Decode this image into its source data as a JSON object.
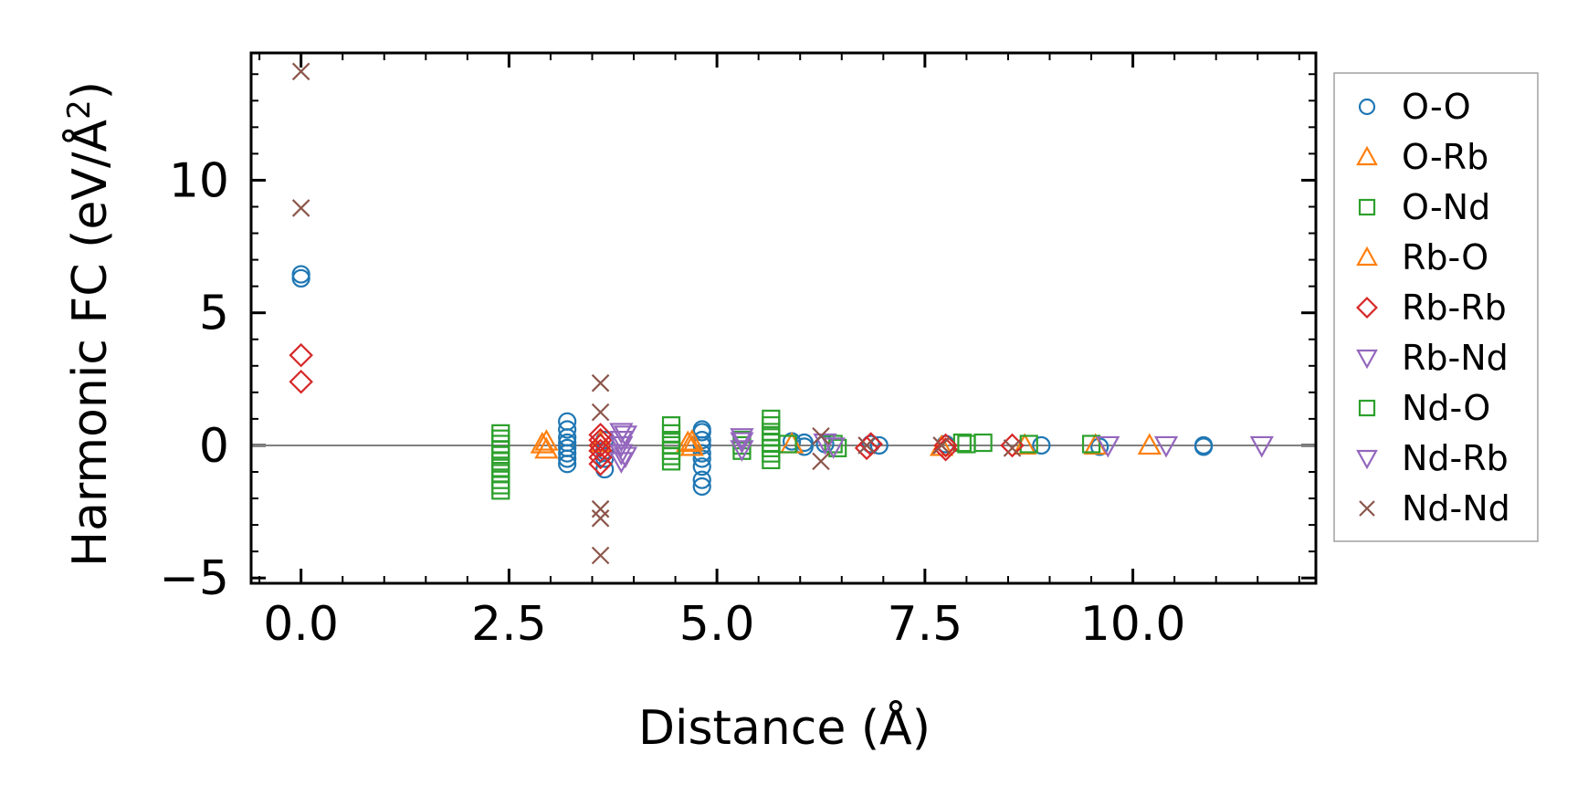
{
  "chart_data": {
    "type": "scatter",
    "title": "",
    "xlabel": "Distance (Å)",
    "ylabel_main": "Harmonic FC (eV/Å",
    "ylabel_sup": "2",
    "ylabel_close": ")",
    "xlim": [
      -0.6,
      12.2
    ],
    "ylim": [
      -5.2,
      14.8
    ],
    "xticks": [
      0.0,
      2.5,
      5.0,
      7.5,
      10.0
    ],
    "xtick_labels": [
      "0.0",
      "2.5",
      "5.0",
      "7.5",
      "10.0"
    ],
    "yticks": [
      -5,
      0,
      5,
      10
    ],
    "ytick_labels": [
      "−5",
      "0",
      "5",
      "10"
    ],
    "zero_line": true,
    "grid": false,
    "legend_position": "outside-right",
    "series": [
      {
        "name": "O-O",
        "marker": "circle",
        "color": "#1f77b4",
        "points": [
          [
            0,
            6.3
          ],
          [
            0,
            6.45
          ],
          [
            3.2,
            0.9
          ],
          [
            3.2,
            0.6
          ],
          [
            3.2,
            0.3
          ],
          [
            3.2,
            0.1
          ],
          [
            3.2,
            -0.1
          ],
          [
            3.2,
            -0.3
          ],
          [
            3.2,
            -0.5
          ],
          [
            3.2,
            -0.7
          ],
          [
            3.65,
            0.2
          ],
          [
            3.65,
            -0.2
          ],
          [
            3.65,
            -0.5
          ],
          [
            3.65,
            -0.9
          ],
          [
            4.82,
            0.6
          ],
          [
            4.82,
            0.5
          ],
          [
            4.82,
            0.2
          ],
          [
            4.82,
            0.0
          ],
          [
            4.82,
            -0.3
          ],
          [
            4.82,
            -0.5
          ],
          [
            4.82,
            -0.8
          ],
          [
            4.82,
            -1.3
          ],
          [
            4.82,
            -1.55
          ],
          [
            5.9,
            0.15
          ],
          [
            6.05,
            0.1
          ],
          [
            6.05,
            -0.05
          ],
          [
            6.3,
            0.05
          ],
          [
            6.85,
            0.05
          ],
          [
            6.95,
            0.0
          ],
          [
            7.75,
            0.05
          ],
          [
            8.9,
            0.0
          ],
          [
            9.6,
            -0.05
          ],
          [
            10.85,
            -0.05
          ],
          [
            10.85,
            0.0
          ]
        ]
      },
      {
        "name": "O-Rb",
        "marker": "triangle-up",
        "color": "#ff7f0e",
        "points": [
          [
            2.95,
            0.15
          ],
          [
            2.95,
            -0.15
          ],
          [
            3.6,
            0.1
          ],
          [
            4.65,
            0.1
          ],
          [
            4.7,
            -0.05
          ],
          [
            5.9,
            0.05
          ],
          [
            7.7,
            -0.05
          ],
          [
            8.7,
            0.0
          ],
          [
            9.55,
            0.0
          ],
          [
            10.2,
            0.0
          ]
        ]
      },
      {
        "name": "O-Nd",
        "marker": "square",
        "color": "#2ca02c",
        "points": [
          [
            2.4,
            0.45
          ],
          [
            2.4,
            0.25
          ],
          [
            2.4,
            0.05
          ],
          [
            2.4,
            -0.15
          ],
          [
            2.4,
            -0.35
          ],
          [
            2.4,
            -0.6
          ],
          [
            2.4,
            -0.85
          ],
          [
            2.4,
            -1.05
          ],
          [
            2.4,
            -1.3
          ],
          [
            2.4,
            -1.5
          ],
          [
            2.4,
            -1.7
          ],
          [
            4.45,
            0.75
          ],
          [
            4.45,
            0.45
          ],
          [
            4.45,
            0.2
          ],
          [
            4.45,
            0.0
          ],
          [
            4.45,
            -0.2
          ],
          [
            4.45,
            -0.4
          ],
          [
            4.45,
            -0.6
          ],
          [
            5.3,
            0.2
          ],
          [
            5.3,
            0.0
          ],
          [
            5.3,
            -0.2
          ],
          [
            5.65,
            1.0
          ],
          [
            5.65,
            0.75
          ],
          [
            5.65,
            0.5
          ],
          [
            5.65,
            0.3
          ],
          [
            5.65,
            0.1
          ],
          [
            5.65,
            -0.1
          ],
          [
            5.65,
            -0.3
          ],
          [
            5.65,
            -0.55
          ],
          [
            6.4,
            0.05
          ],
          [
            6.45,
            -0.1
          ],
          [
            7.95,
            0.1
          ],
          [
            8.2,
            0.1
          ],
          [
            8.75,
            0.05
          ],
          [
            9.5,
            0.05
          ]
        ]
      },
      {
        "name": "Rb-O",
        "marker": "triangle-up",
        "color": "#ff7f0e",
        "points": [
          [
            2.9,
            0.05
          ],
          [
            4.7,
            0.15
          ]
        ]
      },
      {
        "name": "Rb-Rb",
        "marker": "diamond",
        "color": "#d62728",
        "points": [
          [
            0,
            3.4
          ],
          [
            0,
            2.4
          ],
          [
            3.6,
            0.4
          ],
          [
            3.6,
            0.2
          ],
          [
            3.6,
            0.0
          ],
          [
            3.6,
            -0.2
          ],
          [
            3.6,
            -0.45
          ],
          [
            3.6,
            -0.7
          ],
          [
            6.85,
            0.05
          ],
          [
            6.8,
            -0.1
          ],
          [
            7.75,
            0.0
          ],
          [
            7.75,
            -0.15
          ],
          [
            8.55,
            0.0
          ]
        ]
      },
      {
        "name": "Rb-Nd",
        "marker": "triangle-down",
        "color": "#9467bd",
        "points": [
          [
            3.85,
            0.5
          ],
          [
            3.85,
            0.2
          ],
          [
            3.85,
            0.0
          ],
          [
            3.85,
            -0.3
          ],
          [
            3.85,
            -0.6
          ],
          [
            5.3,
            0.15
          ],
          [
            5.3,
            -0.15
          ],
          [
            6.3,
            0.1
          ],
          [
            6.4,
            -0.05
          ],
          [
            9.7,
            0.0
          ],
          [
            10.4,
            0.0
          ],
          [
            11.55,
            0.0
          ]
        ]
      },
      {
        "name": "Nd-O",
        "marker": "square",
        "color": "#2ca02c",
        "points": [
          [
            5.85,
            0.05
          ],
          [
            8.0,
            0.05
          ]
        ]
      },
      {
        "name": "Nd-Rb",
        "marker": "triangle-down",
        "color": "#9467bd",
        "points": [
          [
            3.9,
            0.4
          ],
          [
            3.9,
            -0.4
          ],
          [
            5.3,
            0.3
          ]
        ]
      },
      {
        "name": "Nd-Nd",
        "marker": "x",
        "color": "#8c564b",
        "points": [
          [
            0,
            14.1
          ],
          [
            0,
            8.95
          ],
          [
            3.6,
            2.35
          ],
          [
            3.6,
            1.25
          ],
          [
            3.6,
            -2.4
          ],
          [
            3.6,
            -2.75
          ],
          [
            3.6,
            -4.15
          ],
          [
            6.25,
            0.35
          ],
          [
            6.25,
            -0.6
          ],
          [
            6.8,
            0.0
          ],
          [
            7.7,
            0.0
          ],
          [
            8.55,
            -0.1
          ]
        ]
      }
    ]
  }
}
